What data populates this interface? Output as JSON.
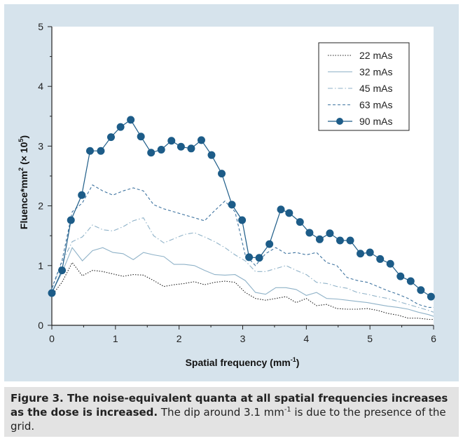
{
  "colors": {
    "panel_bg": "#d6e3ec",
    "plot_bg": "#ffffff",
    "series_22": "#222222",
    "series_32": "#8fb2c8",
    "series_45": "#8fb2c8",
    "series_63": "#3f74a0",
    "series_90": "#1d5c88",
    "caption_bg": "#e3e3e3"
  },
  "chart_data": {
    "type": "line",
    "title": "",
    "xlabel": "Spatial frequency (mm",
    "xlabel_sup": "-1",
    "xlabel_end": ")",
    "ylabel": "Fluence*mm",
    "ylabel_sup1": "2",
    "ylabel_mid": " (× 10",
    "ylabel_sup2": "5",
    "ylabel_end": ")",
    "xlim": [
      0,
      6
    ],
    "ylim": [
      0,
      5
    ],
    "x_ticks": [
      0,
      1,
      2,
      3,
      4,
      5,
      6
    ],
    "y_ticks": [
      0,
      1,
      2,
      3,
      4,
      5
    ],
    "x_tick_labels": [
      "0",
      "1",
      "2",
      "3",
      "4",
      "5",
      "6"
    ],
    "y_tick_labels": [
      "0",
      "1",
      "2",
      "3",
      "4",
      "5"
    ],
    "legend_position": "top-right",
    "series": [
      {
        "name": "22 mAs",
        "style": "dotted",
        "x": [
          0,
          0.16,
          0.32,
          0.48,
          0.64,
          0.8,
          0.96,
          1.12,
          1.28,
          1.44,
          1.6,
          1.76,
          1.92,
          2.08,
          2.24,
          2.4,
          2.56,
          2.72,
          2.88,
          3.04,
          3.2,
          3.36,
          3.52,
          3.68,
          3.84,
          4.0,
          4.16,
          4.32,
          4.48,
          4.64,
          4.8,
          4.96,
          5.12,
          5.28,
          5.44,
          5.6,
          5.76,
          5.92,
          6.0
        ],
        "values": [
          0.5,
          0.72,
          1.05,
          0.83,
          0.92,
          0.9,
          0.86,
          0.82,
          0.85,
          0.84,
          0.75,
          0.65,
          0.68,
          0.7,
          0.73,
          0.68,
          0.72,
          0.74,
          0.72,
          0.55,
          0.45,
          0.42,
          0.45,
          0.48,
          0.38,
          0.45,
          0.33,
          0.35,
          0.28,
          0.27,
          0.27,
          0.28,
          0.25,
          0.2,
          0.17,
          0.12,
          0.12,
          0.1,
          0.1
        ]
      },
      {
        "name": "32 mAs",
        "style": "solid-light",
        "x": [
          0,
          0.16,
          0.32,
          0.48,
          0.64,
          0.8,
          0.96,
          1.12,
          1.28,
          1.44,
          1.6,
          1.76,
          1.92,
          2.08,
          2.24,
          2.4,
          2.56,
          2.72,
          2.88,
          3.04,
          3.2,
          3.36,
          3.52,
          3.68,
          3.84,
          4.0,
          4.16,
          4.32,
          4.48,
          4.64,
          4.8,
          4.96,
          5.12,
          5.28,
          5.44,
          5.6,
          5.76,
          5.92,
          6.0
        ],
        "values": [
          0.55,
          0.88,
          1.3,
          1.08,
          1.25,
          1.3,
          1.22,
          1.2,
          1.1,
          1.22,
          1.18,
          1.15,
          1.02,
          1.02,
          1.0,
          0.92,
          0.85,
          0.84,
          0.85,
          0.75,
          0.55,
          0.52,
          0.63,
          0.63,
          0.6,
          0.5,
          0.55,
          0.45,
          0.44,
          0.42,
          0.4,
          0.38,
          0.35,
          0.32,
          0.3,
          0.27,
          0.22,
          0.18,
          0.15
        ]
      },
      {
        "name": "45 mAs",
        "style": "dash-dot",
        "x": [
          0,
          0.16,
          0.32,
          0.48,
          0.64,
          0.8,
          0.96,
          1.12,
          1.28,
          1.44,
          1.6,
          1.76,
          1.92,
          2.08,
          2.24,
          2.4,
          2.56,
          2.72,
          2.88,
          3.04,
          3.2,
          3.36,
          3.52,
          3.68,
          3.84,
          4.0,
          4.16,
          4.32,
          4.48,
          4.64,
          4.8,
          4.96,
          5.12,
          5.28,
          5.44,
          5.6,
          5.76,
          5.92,
          6.0
        ],
        "values": [
          0.6,
          1.05,
          1.4,
          1.48,
          1.68,
          1.6,
          1.58,
          1.65,
          1.75,
          1.8,
          1.5,
          1.38,
          1.45,
          1.52,
          1.55,
          1.48,
          1.4,
          1.3,
          1.18,
          1.08,
          0.9,
          0.9,
          0.95,
          1.0,
          0.92,
          0.85,
          0.72,
          0.7,
          0.65,
          0.62,
          0.55,
          0.52,
          0.48,
          0.45,
          0.4,
          0.35,
          0.3,
          0.25,
          0.22
        ]
      },
      {
        "name": "63 mAs",
        "style": "dashed",
        "x": [
          0,
          0.16,
          0.32,
          0.48,
          0.64,
          0.8,
          0.96,
          1.12,
          1.28,
          1.44,
          1.6,
          1.76,
          1.92,
          2.08,
          2.24,
          2.4,
          2.56,
          2.72,
          2.88,
          3.04,
          3.2,
          3.36,
          3.52,
          3.68,
          3.84,
          4.0,
          4.16,
          4.32,
          4.48,
          4.64,
          4.8,
          4.96,
          5.12,
          5.28,
          5.44,
          5.6,
          5.76,
          5.92,
          6.0
        ],
        "values": [
          0.62,
          1.08,
          1.9,
          2.05,
          2.35,
          2.25,
          2.18,
          2.25,
          2.3,
          2.25,
          2.02,
          1.95,
          1.9,
          1.85,
          1.8,
          1.75,
          1.92,
          2.08,
          1.9,
          1.18,
          1.0,
          1.2,
          1.3,
          1.2,
          1.22,
          1.18,
          1.22,
          1.05,
          1.0,
          0.8,
          0.75,
          0.72,
          0.65,
          0.58,
          0.52,
          0.45,
          0.35,
          0.3,
          0.3
        ]
      },
      {
        "name": "90 mAs",
        "style": "solid-markers",
        "x": [
          0,
          0.16,
          0.3,
          0.47,
          0.6,
          0.77,
          0.93,
          1.08,
          1.24,
          1.4,
          1.56,
          1.72,
          1.88,
          2.03,
          2.19,
          2.35,
          2.51,
          2.67,
          2.83,
          2.99,
          3.1,
          3.26,
          3.42,
          3.6,
          3.73,
          3.9,
          4.05,
          4.21,
          4.37,
          4.53,
          4.69,
          4.85,
          5.0,
          5.16,
          5.32,
          5.48,
          5.64,
          5.8,
          5.96
        ],
        "values": [
          0.54,
          0.92,
          1.76,
          2.18,
          2.92,
          2.92,
          3.15,
          3.32,
          3.44,
          3.16,
          2.89,
          2.94,
          3.09,
          2.99,
          2.96,
          3.1,
          2.85,
          2.54,
          2.02,
          1.76,
          1.14,
          1.13,
          1.36,
          1.94,
          1.88,
          1.73,
          1.55,
          1.44,
          1.54,
          1.42,
          1.42,
          1.2,
          1.22,
          1.11,
          1.03,
          0.82,
          0.74,
          0.59,
          0.48
        ]
      }
    ]
  },
  "caption": {
    "bold": "Figure 3. The noise-equivalent quanta at all spatial frequencies increases as the dose is increased.",
    "rest_a": " The dip around 3.1 mm",
    "rest_sup": "-1",
    "rest_b": " is due to the presence of the grid."
  }
}
